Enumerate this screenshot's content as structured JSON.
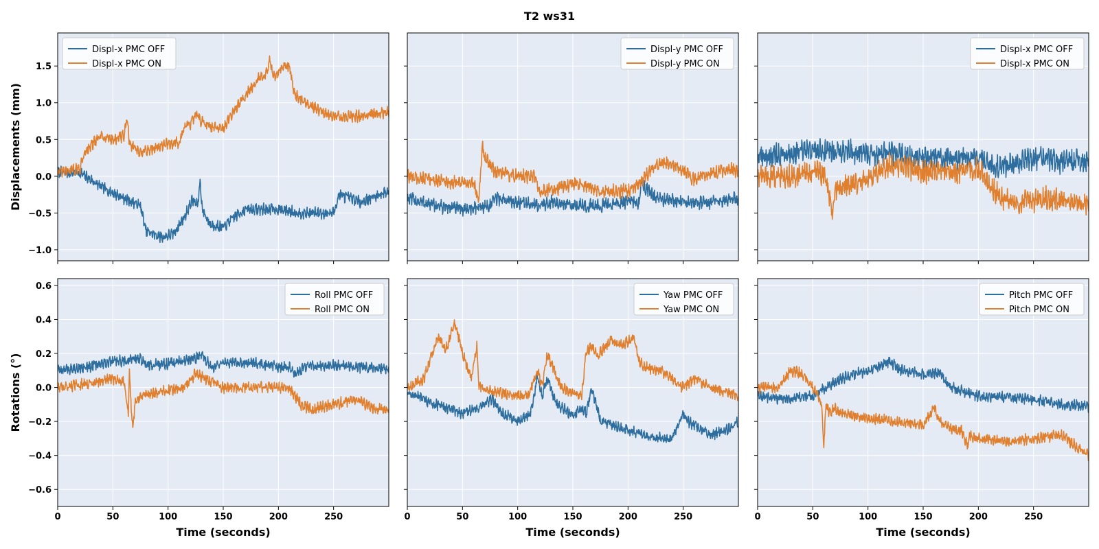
{
  "figure": {
    "title": "T2  ws31",
    "colors": {
      "off": "#2e6e9e",
      "on": "#e07f2d",
      "panel_bg": "#e5ebf5",
      "grid": "#ffffff"
    }
  },
  "chart_data": [
    {
      "type": "line",
      "panel": "top-left",
      "xlabel": "",
      "ylabel": "Displacements (mm)",
      "xlim": [
        0,
        300
      ],
      "ylim": [
        -1.15,
        1.95
      ],
      "xticks": [
        0,
        50,
        100,
        150,
        200,
        250
      ],
      "yticks": [
        -1.0,
        -0.5,
        0.0,
        0.5,
        1.0,
        1.5
      ],
      "yticklabels": [
        "−1.0",
        "−0.5",
        "0.0",
        "0.5",
        "1.0",
        "1.5"
      ],
      "show_xticklabels": false,
      "legend": "upper left",
      "noise": 0.06,
      "series": [
        {
          "name": "Displ-x PMC OFF",
          "key": "off",
          "x": [
            0,
            20,
            40,
            60,
            75,
            80,
            95,
            105,
            115,
            122,
            127,
            129,
            131,
            138,
            150,
            160,
            170,
            200,
            220,
            240,
            250,
            255,
            275,
            300
          ],
          "values": [
            0.05,
            0.05,
            -0.15,
            -0.3,
            -0.4,
            -0.75,
            -0.83,
            -0.78,
            -0.55,
            -0.32,
            -0.4,
            -0.05,
            -0.45,
            -0.65,
            -0.7,
            -0.55,
            -0.45,
            -0.45,
            -0.5,
            -0.5,
            -0.5,
            -0.25,
            -0.35,
            -0.2
          ]
        },
        {
          "name": "Displ-x PMC ON",
          "key": "on",
          "x": [
            0,
            20,
            25,
            40,
            50,
            60,
            63,
            65,
            75,
            80,
            90,
            100,
            110,
            115,
            120,
            125,
            130,
            140,
            150,
            165,
            180,
            190,
            192,
            195,
            205,
            210,
            215,
            225,
            250,
            275,
            300
          ],
          "values": [
            0.05,
            0.1,
            0.35,
            0.55,
            0.5,
            0.55,
            0.8,
            0.45,
            0.3,
            0.35,
            0.4,
            0.45,
            0.45,
            0.7,
            0.7,
            0.85,
            0.75,
            0.65,
            0.65,
            1.0,
            1.3,
            1.4,
            1.6,
            1.35,
            1.5,
            1.5,
            1.1,
            1.0,
            0.8,
            0.82,
            0.88
          ]
        }
      ]
    },
    {
      "type": "line",
      "panel": "top-middle",
      "xlabel": "",
      "ylabel": "",
      "xlim": [
        0,
        300
      ],
      "ylim": [
        -1.15,
        1.95
      ],
      "xticks": [
        0,
        50,
        100,
        150,
        200,
        250
      ],
      "yticks": [
        -1.0,
        -0.5,
        0.0,
        0.5,
        1.0,
        1.5
      ],
      "show_xticklabels": false,
      "show_yticklabels": false,
      "legend": "upper right",
      "noise": 0.07,
      "series": [
        {
          "name": "Displ-y PMC OFF",
          "key": "off",
          "x": [
            0,
            25,
            50,
            75,
            80,
            100,
            120,
            130,
            150,
            175,
            200,
            210,
            212,
            225,
            250,
            275,
            300
          ],
          "values": [
            -0.3,
            -0.4,
            -0.45,
            -0.4,
            -0.3,
            -0.35,
            -0.4,
            -0.35,
            -0.4,
            -0.4,
            -0.35,
            -0.35,
            -0.1,
            -0.3,
            -0.35,
            -0.35,
            -0.3
          ]
        },
        {
          "name": "Displ-y PMC ON",
          "key": "on",
          "x": [
            0,
            25,
            50,
            60,
            65,
            68,
            70,
            80,
            100,
            115,
            120,
            140,
            150,
            175,
            200,
            210,
            225,
            235,
            250,
            260,
            275,
            290,
            300
          ],
          "values": [
            0.0,
            -0.05,
            -0.1,
            -0.1,
            -0.3,
            0.45,
            0.25,
            0.05,
            0.0,
            0.0,
            -0.2,
            -0.15,
            -0.1,
            -0.2,
            -0.2,
            -0.1,
            0.15,
            0.2,
            0.1,
            -0.05,
            0.05,
            0.1,
            0.08
          ]
        }
      ]
    },
    {
      "type": "line",
      "panel": "top-right",
      "xlabel": "",
      "ylabel": "",
      "xlim": [
        0,
        300
      ],
      "ylim": [
        -1.15,
        1.95
      ],
      "xticks": [
        0,
        50,
        100,
        150,
        200,
        250
      ],
      "yticks": [
        -1.0,
        -0.5,
        0.0,
        0.5,
        1.0,
        1.5
      ],
      "show_xticklabels": false,
      "show_yticklabels": false,
      "legend": "upper right",
      "noise": 0.12,
      "series": [
        {
          "name": "Displ-x PMC OFF",
          "key": "off",
          "x": [
            0,
            25,
            50,
            75,
            100,
            125,
            150,
            175,
            200,
            210,
            225,
            250,
            275,
            300
          ],
          "values": [
            0.25,
            0.3,
            0.35,
            0.35,
            0.3,
            0.3,
            0.25,
            0.25,
            0.25,
            0.15,
            0.15,
            0.25,
            0.2,
            0.2
          ]
        },
        {
          "name": "Displ-x PMC ON",
          "key": "on",
          "x": [
            0,
            25,
            50,
            60,
            65,
            68,
            70,
            75,
            100,
            120,
            125,
            150,
            175,
            200,
            210,
            220,
            240,
            260,
            300
          ],
          "values": [
            0.0,
            0.0,
            0.05,
            0.05,
            -0.3,
            -0.55,
            -0.2,
            -0.15,
            -0.05,
            0.15,
            0.15,
            0.05,
            0.05,
            0.1,
            -0.1,
            -0.3,
            -0.35,
            -0.3,
            -0.4
          ]
        }
      ]
    },
    {
      "type": "line",
      "panel": "bottom-left",
      "xlabel": "Time (seconds)",
      "ylabel": "Rotations (°)",
      "xlim": [
        0,
        300
      ],
      "ylim": [
        -0.7,
        0.64
      ],
      "xticks": [
        0,
        50,
        100,
        150,
        200,
        250
      ],
      "yticks": [
        -0.6,
        -0.4,
        -0.2,
        0.0,
        0.2,
        0.4,
        0.6
      ],
      "yticklabels": [
        "−0.6",
        "−0.4",
        "−0.2",
        "0.0",
        "0.2",
        "0.4",
        "0.6"
      ],
      "show_xticklabels": true,
      "legend": "upper right",
      "noise": 0.025,
      "series": [
        {
          "name": "Roll PMC OFF",
          "key": "off",
          "x": [
            0,
            25,
            50,
            75,
            80,
            100,
            125,
            130,
            140,
            150,
            175,
            200,
            210,
            215,
            225,
            250,
            275,
            300
          ],
          "values": [
            0.1,
            0.12,
            0.15,
            0.17,
            0.13,
            0.14,
            0.17,
            0.2,
            0.12,
            0.14,
            0.15,
            0.12,
            0.12,
            0.08,
            0.12,
            0.13,
            0.12,
            0.11
          ]
        },
        {
          "name": "Roll PMC ON",
          "key": "on",
          "x": [
            0,
            25,
            50,
            60,
            64,
            65,
            66,
            68,
            70,
            75,
            100,
            115,
            125,
            140,
            150,
            175,
            200,
            210,
            220,
            230,
            250,
            270,
            285,
            300
          ],
          "values": [
            0.0,
            0.02,
            0.05,
            0.04,
            -0.15,
            0.1,
            -0.05,
            -0.25,
            -0.1,
            -0.05,
            -0.02,
            0.0,
            0.08,
            0.03,
            0.0,
            0.0,
            0.0,
            0.0,
            -0.1,
            -0.13,
            -0.1,
            -0.07,
            -0.12,
            -0.13
          ]
        }
      ]
    },
    {
      "type": "line",
      "panel": "bottom-middle",
      "xlabel": "Time (seconds)",
      "ylabel": "",
      "xlim": [
        0,
        300
      ],
      "ylim": [
        -0.7,
        0.64
      ],
      "xticks": [
        0,
        50,
        100,
        150,
        200,
        250
      ],
      "yticks": [
        -0.6,
        -0.4,
        -0.2,
        0.0,
        0.2,
        0.4,
        0.6
      ],
      "show_xticklabels": true,
      "show_yticklabels": false,
      "legend": "upper right",
      "noise": 0.025,
      "series": [
        {
          "name": "Yaw PMC OFF",
          "key": "off",
          "x": [
            0,
            25,
            50,
            65,
            77,
            85,
            100,
            112,
            118,
            122,
            127,
            135,
            150,
            158,
            162,
            167,
            175,
            200,
            220,
            240,
            250,
            255,
            275,
            290,
            300
          ],
          "values": [
            -0.03,
            -0.1,
            -0.15,
            -0.12,
            -0.07,
            -0.15,
            -0.2,
            -0.15,
            0.07,
            -0.05,
            0.05,
            -0.1,
            -0.16,
            -0.12,
            -0.15,
            0.0,
            -0.2,
            -0.25,
            -0.3,
            -0.3,
            -0.15,
            -0.2,
            -0.28,
            -0.25,
            -0.2
          ]
        },
        {
          "name": "Yaw PMC ON",
          "key": "on",
          "x": [
            0,
            15,
            28,
            35,
            43,
            50,
            58,
            63,
            65,
            75,
            100,
            110,
            118,
            122,
            127,
            130,
            140,
            150,
            158,
            162,
            167,
            172,
            185,
            195,
            205,
            210,
            215,
            230,
            250,
            260,
            275,
            300
          ],
          "values": [
            0.0,
            0.05,
            0.3,
            0.22,
            0.38,
            0.2,
            0.05,
            0.25,
            0.0,
            -0.02,
            -0.05,
            -0.05,
            0.1,
            0.0,
            0.2,
            0.15,
            0.0,
            -0.03,
            -0.05,
            0.2,
            0.25,
            0.18,
            0.28,
            0.25,
            0.3,
            0.15,
            0.12,
            0.1,
            0.0,
            0.05,
            0.0,
            -0.05
          ]
        }
      ]
    },
    {
      "type": "line",
      "panel": "bottom-right",
      "xlabel": "Time (seconds)",
      "ylabel": "",
      "xlim": [
        0,
        300
      ],
      "ylim": [
        -0.7,
        0.64
      ],
      "xticks": [
        0,
        50,
        100,
        150,
        200,
        250
      ],
      "yticks": [
        -0.6,
        -0.4,
        -0.2,
        0.0,
        0.2,
        0.4,
        0.6
      ],
      "show_xticklabels": true,
      "show_yticklabels": false,
      "legend": "upper right",
      "noise": 0.025,
      "series": [
        {
          "name": "Pitch PMC OFF",
          "key": "off",
          "x": [
            0,
            25,
            50,
            75,
            100,
            120,
            130,
            150,
            165,
            175,
            200,
            225,
            250,
            275,
            300
          ],
          "values": [
            -0.05,
            -0.07,
            -0.05,
            0.05,
            0.1,
            0.15,
            0.1,
            0.08,
            0.08,
            0.0,
            -0.05,
            -0.06,
            -0.07,
            -0.1,
            -0.11
          ]
        },
        {
          "name": "Pitch PMC ON",
          "key": "on",
          "x": [
            0,
            20,
            30,
            40,
            50,
            58,
            60,
            62,
            65,
            70,
            75,
            100,
            125,
            150,
            160,
            165,
            175,
            185,
            190,
            192,
            200,
            225,
            250,
            275,
            300
          ],
          "values": [
            0.0,
            0.0,
            0.1,
            0.08,
            0.0,
            -0.1,
            -0.35,
            -0.1,
            -0.15,
            -0.12,
            -0.15,
            -0.18,
            -0.2,
            -0.22,
            -0.12,
            -0.2,
            -0.25,
            -0.25,
            -0.35,
            -0.28,
            -0.3,
            -0.32,
            -0.3,
            -0.28,
            -0.4
          ]
        }
      ]
    }
  ]
}
